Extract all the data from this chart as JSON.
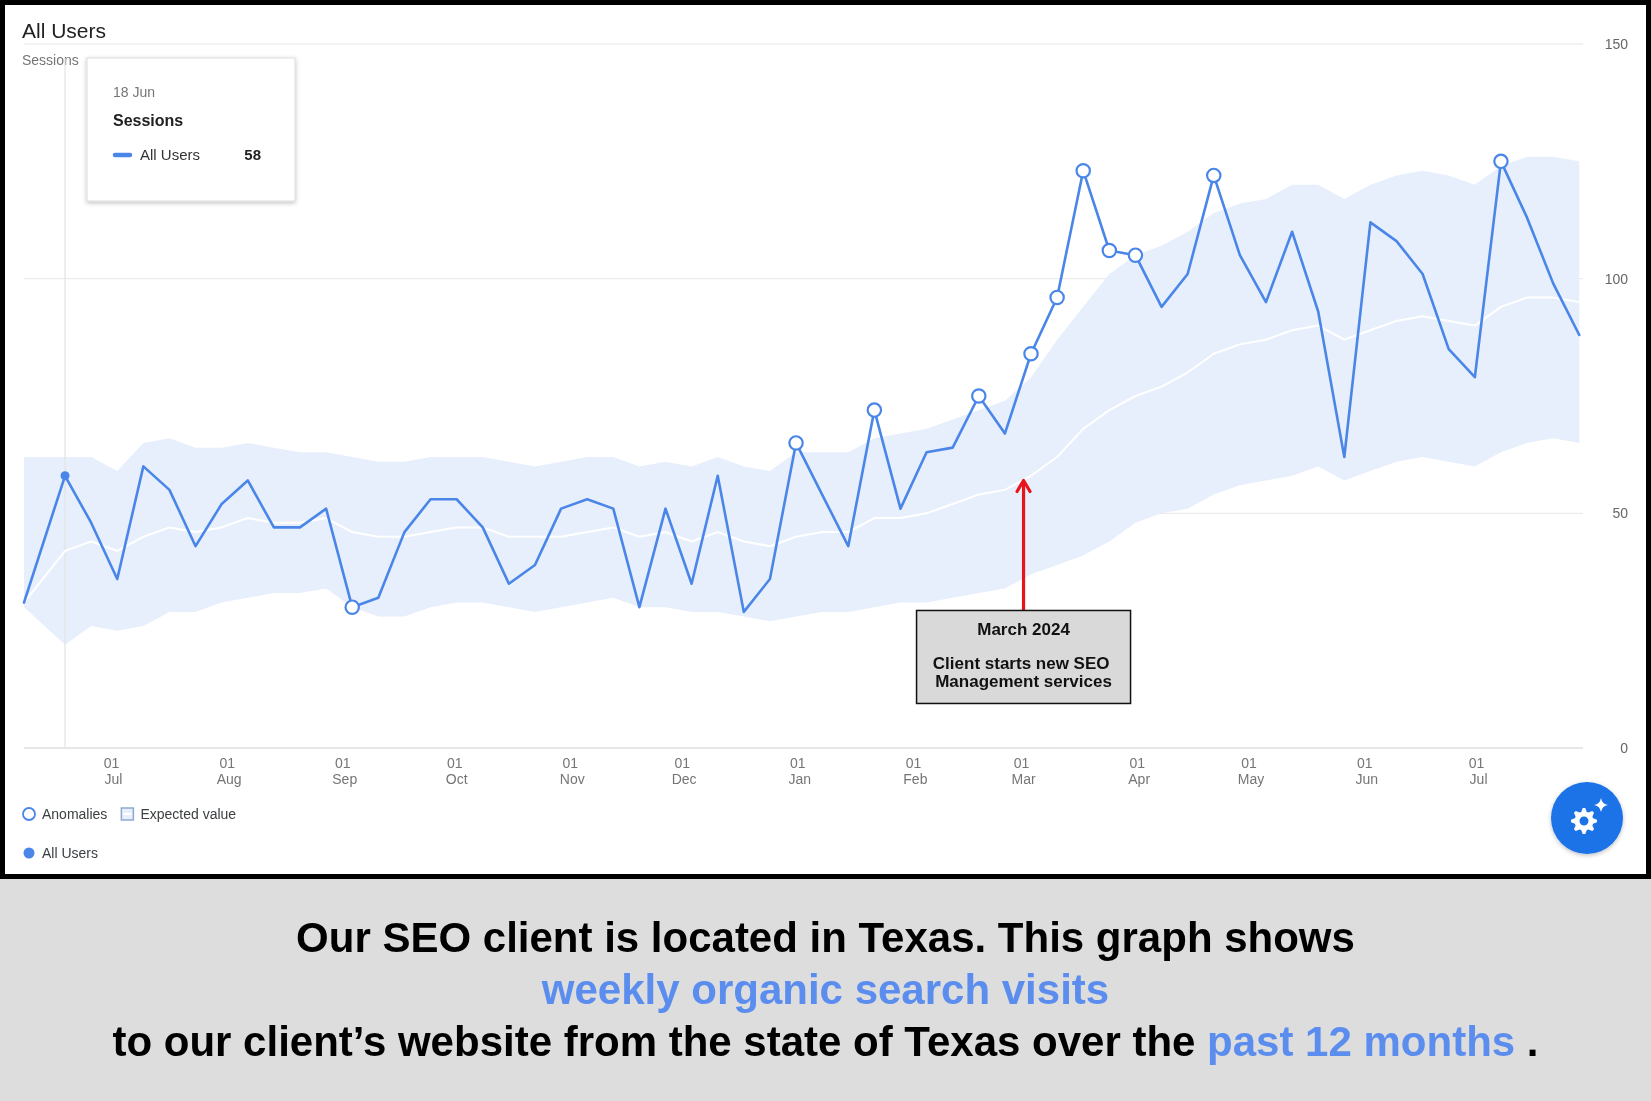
{
  "chart_data": {
    "type": "line",
    "title": "All Users",
    "ylabel": "Sessions",
    "x": [
      "2023-06-07",
      "2023-06-18",
      "2023-06-25",
      "2023-07-02",
      "2023-07-09",
      "2023-07-16",
      "2023-07-23",
      "2023-07-30",
      "2023-08-06",
      "2023-08-13",
      "2023-08-20",
      "2023-08-27",
      "2023-09-03",
      "2023-09-10",
      "2023-09-17",
      "2023-09-24",
      "2023-10-01",
      "2023-10-08",
      "2023-10-15",
      "2023-10-22",
      "2023-10-29",
      "2023-11-05",
      "2023-11-12",
      "2023-11-19",
      "2023-11-26",
      "2023-12-03",
      "2023-12-10",
      "2023-12-17",
      "2023-12-24",
      "2023-12-31",
      "2024-01-07",
      "2024-01-14",
      "2024-01-21",
      "2024-01-28",
      "2024-02-04",
      "2024-02-11",
      "2024-02-18",
      "2024-02-25",
      "2024-03-03",
      "2024-03-10",
      "2024-03-17",
      "2024-03-24",
      "2024-03-31",
      "2024-04-07",
      "2024-04-14",
      "2024-04-21",
      "2024-04-28",
      "2024-05-05",
      "2024-05-12",
      "2024-05-19",
      "2024-05-26",
      "2024-06-02",
      "2024-06-09",
      "2024-06-16",
      "2024-06-23",
      "2024-06-30",
      "2024-07-07",
      "2024-07-14",
      "2024-07-21",
      "2024-07-28"
    ],
    "series": [
      {
        "name": "Anomalies",
        "type": "scatter",
        "color": "#4a86e8",
        "marker": "circle",
        "x": [
          "2023-09-03",
          "2023-12-31",
          "2024-01-21",
          "2024-02-18",
          "2024-03-03",
          "2024-03-10",
          "2024-03-17",
          "2024-03-24",
          "2024-03-31",
          "2024-04-21",
          "2024-07-07"
        ],
        "values": [
          30,
          65,
          72,
          75,
          84,
          96,
          123,
          106,
          105,
          122,
          125
        ]
      },
      {
        "name": "Expected value",
        "color": "#ffffff",
        "values": [
          31,
          42,
          44,
          42,
          45,
          47,
          46,
          47,
          49,
          48,
          48,
          49,
          46,
          45,
          45,
          46,
          47,
          47,
          45,
          45,
          45,
          46,
          47,
          45,
          46,
          44,
          46,
          44,
          43,
          45,
          46,
          46,
          49,
          49,
          50,
          52,
          54,
          55,
          58,
          62,
          68,
          72,
          75,
          77,
          80,
          84,
          86,
          87,
          89,
          90,
          87,
          89,
          91,
          92,
          91,
          90,
          94,
          96,
          96,
          95
        ],
        "lower": [
          30,
          22,
          26,
          25,
          26,
          29,
          29,
          31,
          32,
          33,
          33,
          34,
          30,
          28,
          28,
          30,
          31,
          31,
          30,
          29,
          30,
          31,
          32,
          30,
          30,
          29,
          29,
          28,
          27,
          28,
          29,
          29,
          30,
          31,
          31,
          32,
          33,
          34,
          37,
          39,
          41,
          44,
          48,
          50,
          51,
          54,
          56,
          57,
          58,
          60,
          57,
          59,
          61,
          62,
          61,
          60,
          63,
          65,
          66,
          65
        ],
        "upper": [
          62,
          62,
          62,
          59,
          65,
          66,
          64,
          64,
          65,
          64,
          63,
          63,
          62,
          61,
          61,
          62,
          62,
          62,
          61,
          60,
          61,
          62,
          62,
          60,
          61,
          60,
          62,
          60,
          59,
          63,
          63,
          63,
          66,
          67,
          68,
          70,
          72,
          74,
          79,
          87,
          94,
          101,
          105,
          107,
          110,
          114,
          116,
          117,
          120,
          120,
          117,
          120,
          122,
          123,
          122,
          120,
          124,
          126,
          126,
          125
        ]
      },
      {
        "name": "All Users",
        "color": "#4a86e8",
        "values": [
          31,
          58,
          48,
          36,
          60,
          55,
          43,
          52,
          57,
          47,
          47,
          51,
          30,
          32,
          46,
          53,
          53,
          47,
          35,
          39,
          51,
          53,
          51,
          30,
          51,
          35,
          58,
          29,
          36,
          65,
          54,
          43,
          72,
          51,
          63,
          64,
          75,
          67,
          84,
          96,
          123,
          106,
          105,
          94,
          101,
          122,
          105,
          95,
          110,
          93,
          62,
          112,
          108,
          101,
          85,
          79,
          125,
          113,
          99,
          88
        ]
      }
    ],
    "xlim": [
      "2023-06-07",
      "2024-07-29"
    ],
    "xticks": [
      {
        "value": "2023-07-01",
        "label": "01 Jul"
      },
      {
        "value": "2023-08-01",
        "label": "01 Aug"
      },
      {
        "value": "2023-09-01",
        "label": "01 Sep"
      },
      {
        "value": "2023-10-01",
        "label": "01 Oct"
      },
      {
        "value": "2023-11-01",
        "label": "01 Nov"
      },
      {
        "value": "2023-12-01",
        "label": "01 Dec"
      },
      {
        "value": "2024-01-01",
        "label": "01 Jan"
      },
      {
        "value": "2024-02-01",
        "label": "01 Feb"
      },
      {
        "value": "2024-03-01",
        "label": "01 Mar"
      },
      {
        "value": "2024-04-01",
        "label": "01 Apr"
      },
      {
        "value": "2024-05-01",
        "label": "01 May"
      },
      {
        "value": "2024-06-01",
        "label": "01 Jun"
      },
      {
        "value": "2024-07-01",
        "label": "01 Jul"
      }
    ],
    "ylim": [
      0,
      150
    ],
    "yticks": [
      0,
      50,
      100,
      150
    ],
    "grid": "y",
    "legend": "bottom left",
    "marker": "none",
    "ref_lines": [
      {
        "axis": "x",
        "value": "2023-06-18",
        "color": "#e3e3e3"
      }
    ],
    "annotations": [
      "18 Jun",
      "Sessions",
      "58",
      {
        "text": "March 2024",
        "x": "2024-03-01",
        "y": 57
      },
      "Client starts new SEO Management services",
      "Our SEO client is located in Texas. This graph shows ",
      "weekly organic search visits",
      " to our client’s website from the state of Texas over the ",
      "past 12 months",
      "."
    ]
  }
}
